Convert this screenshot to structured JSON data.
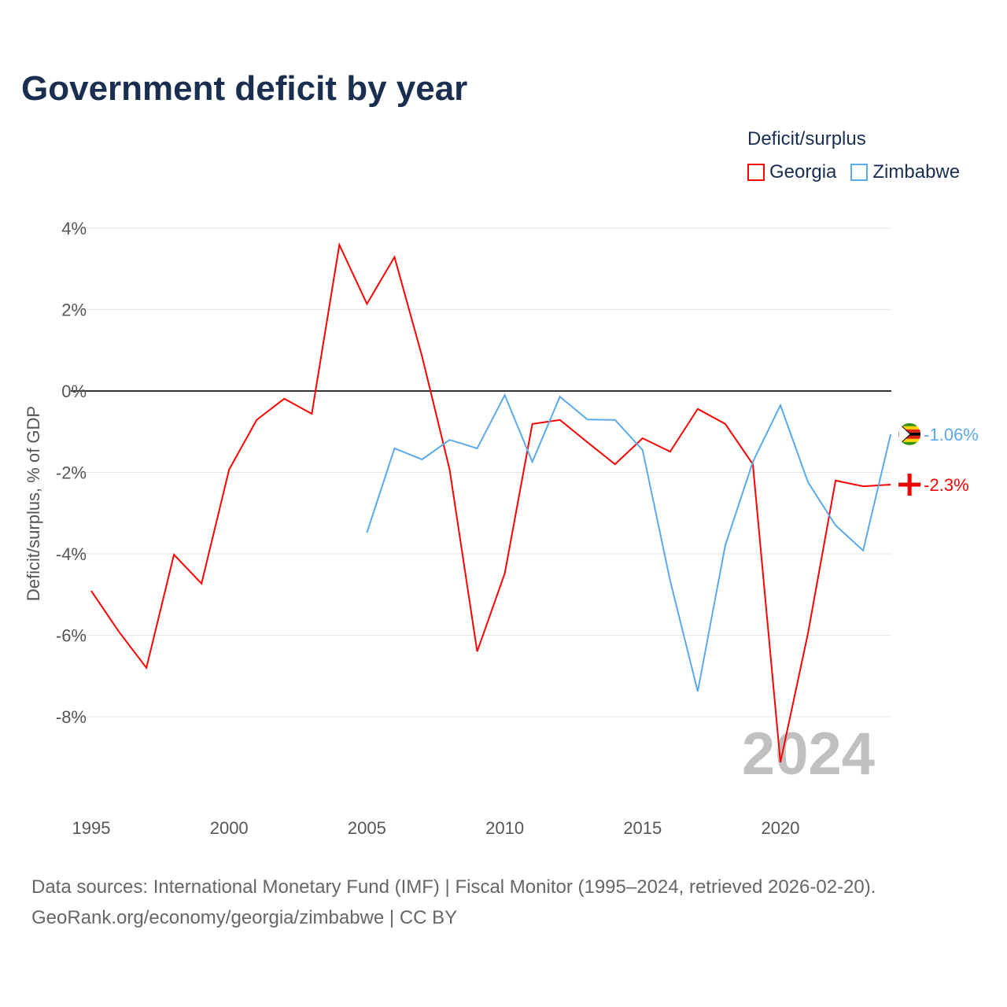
{
  "chart_data": {
    "type": "line",
    "title": "Government deficit by year",
    "ylabel": "Deficit/surplus, % of GDP",
    "xlabel": "",
    "xlim": [
      1995,
      2024
    ],
    "ylim": [
      -10,
      4
    ],
    "x_ticks": [
      1995,
      2000,
      2005,
      2010,
      2015,
      2020
    ],
    "y_ticks": [
      4,
      2,
      0,
      -2,
      -4,
      -6,
      -8
    ],
    "y_tick_labels": [
      "4%",
      "2%",
      "0%",
      "-2%",
      "-4%",
      "-6%",
      "-8%"
    ],
    "legend_title": "Deficit/surplus",
    "legend_position": "top-right",
    "year_watermark": "2024",
    "series": [
      {
        "name": "Georgia",
        "color": "#ff0000",
        "end_label": "-2.3%",
        "x": [
          1995,
          1996,
          1997,
          1998,
          1999,
          2000,
          2001,
          2002,
          2003,
          2004,
          2005,
          2006,
          2007,
          2008,
          2009,
          2010,
          2011,
          2012,
          2013,
          2014,
          2015,
          2016,
          2017,
          2018,
          2019,
          2020,
          2021,
          2022,
          2023,
          2024
        ],
        "values": [
          -4.91,
          -5.91,
          -6.8,
          -4.02,
          -4.73,
          -1.93,
          -0.71,
          -0.19,
          -0.56,
          3.59,
          2.14,
          3.29,
          0.85,
          -1.93,
          -6.4,
          -4.48,
          -0.81,
          -0.71,
          -1.26,
          -1.8,
          -1.16,
          -1.49,
          -0.44,
          -0.81,
          -1.8,
          -9.12,
          -5.95,
          -2.2,
          -2.34,
          -2.3
        ]
      },
      {
        "name": "Zimbabwe",
        "color": "#5aa9ec",
        "end_label": "-1.06%",
        "x": [
          2005,
          2006,
          2007,
          2008,
          2009,
          2010,
          2011,
          2012,
          2013,
          2014,
          2015,
          2016,
          2017,
          2018,
          2019,
          2020,
          2021,
          2022,
          2023,
          2024
        ],
        "values": [
          -3.48,
          -1.41,
          -1.68,
          -1.2,
          -1.41,
          -0.1,
          -1.74,
          -0.14,
          -0.7,
          -0.71,
          -1.45,
          -4.66,
          -7.38,
          -3.79,
          -1.74,
          -0.35,
          -2.24,
          -3.3,
          -3.92,
          -1.06
        ]
      }
    ]
  },
  "footer": {
    "line1": "Data sources: International Monetary Fund (IMF) | Fiscal Monitor (1995–2024, retrieved 2026-02-20).",
    "line2": "GeoRank.org/economy/georgia/zimbabwe | CC BY"
  }
}
